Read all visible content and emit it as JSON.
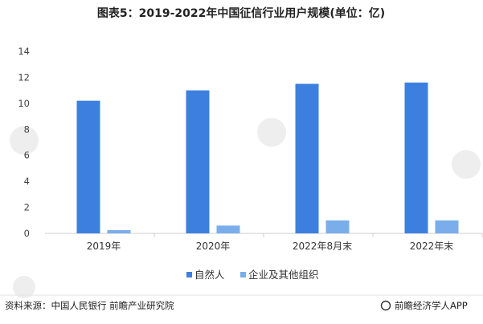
{
  "title": "图表5：2019-2022年中国征信行业用户规模(单位：亿)",
  "source": "资料来源：中国人民银行 前瞻产业研究院",
  "brand": "前瞻经济学人APP",
  "chart_data": {
    "type": "bar",
    "title": "图表5：2019-2022年中国征信行业用户规模(单位：亿)",
    "categories": [
      "2019年",
      "2020年",
      "2022年8月末",
      "2022年末"
    ],
    "series": [
      {
        "name": "自然人",
        "values": [
          10.2,
          11.0,
          11.5,
          11.6
        ],
        "color": "#3d7fde"
      },
      {
        "name": "企业及其他组织",
        "values": [
          0.25,
          0.6,
          1.0,
          1.0
        ],
        "color": "#7aaeeb"
      }
    ],
    "ylim": [
      0,
      14
    ],
    "yticks": [
      0,
      2,
      4,
      6,
      8,
      10,
      12,
      14
    ],
    "grid": false,
    "legend": "bottom-center"
  }
}
